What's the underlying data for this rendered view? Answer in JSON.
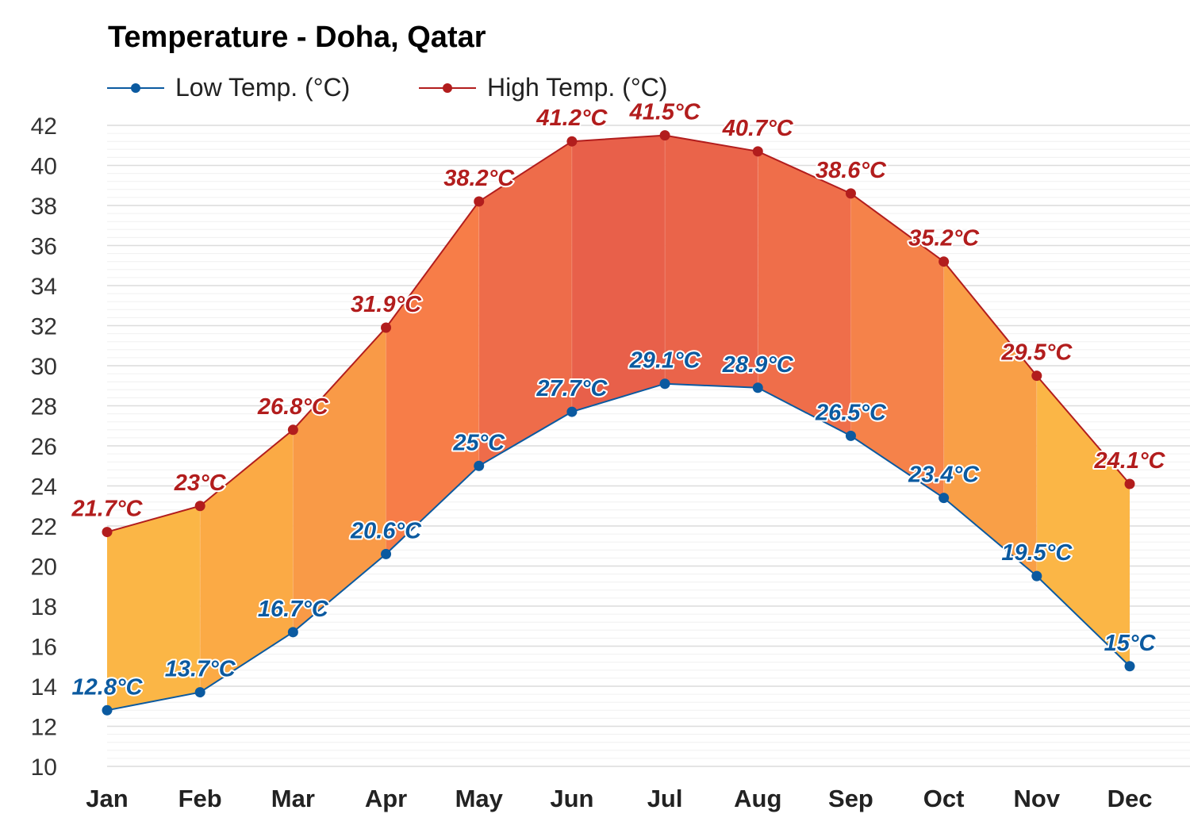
{
  "chart_data": {
    "type": "area",
    "title": "Temperature - Doha, Qatar",
    "categories": [
      "Jan",
      "Feb",
      "Mar",
      "Apr",
      "May",
      "Jun",
      "Jul",
      "Aug",
      "Sep",
      "Oct",
      "Nov",
      "Dec"
    ],
    "series": [
      {
        "name": "Low Temp. (°C)",
        "color": "#0b5aa0",
        "values": [
          12.8,
          13.7,
          16.7,
          20.6,
          25,
          27.7,
          29.1,
          28.9,
          26.5,
          23.4,
          19.5,
          15
        ]
      },
      {
        "name": "High Temp. (°C)",
        "color": "#b21d1d",
        "values": [
          21.7,
          23,
          26.8,
          31.9,
          38.2,
          41.2,
          41.5,
          40.7,
          38.6,
          35.2,
          29.5,
          24.1
        ]
      }
    ],
    "ylim": [
      10,
      42
    ],
    "yticks": [
      10,
      12,
      14,
      16,
      18,
      20,
      22,
      24,
      26,
      28,
      30,
      32,
      34,
      36,
      38,
      40,
      42
    ],
    "unit_suffix": "°C",
    "grid": true,
    "legend": "top-left",
    "fill_colors": [
      "#fbb646",
      "#fbaa45",
      "#f99a47",
      "#f77d48",
      "#ee6c4a",
      "#e8604a",
      "#ea644a",
      "#ef6e4a",
      "#f5824a",
      "#f99f47",
      "#fbb646"
    ]
  }
}
